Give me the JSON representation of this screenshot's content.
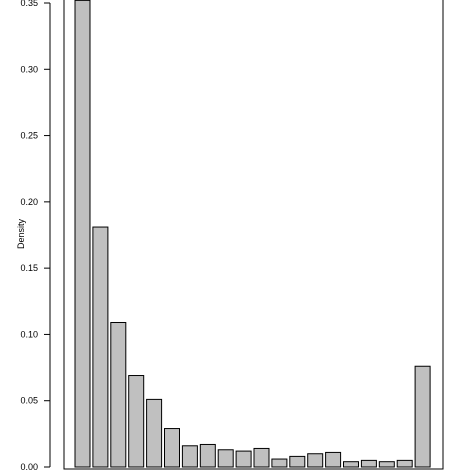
{
  "chart_data": {
    "type": "bar",
    "ylabel": "Density",
    "ylim": [
      0,
      0.35
    ],
    "y_ticks": [
      0.0,
      0.05,
      0.1,
      0.15,
      0.2,
      0.25,
      0.3,
      0.35
    ],
    "y_tick_labels": [
      "0.00",
      "0.05",
      "0.10",
      "0.15",
      "0.20",
      "0.25",
      "0.30",
      "0.35"
    ],
    "values": [
      0.352,
      0.181,
      0.109,
      0.069,
      0.051,
      0.029,
      0.016,
      0.017,
      0.013,
      0.012,
      0.014,
      0.006,
      0.008,
      0.01,
      0.011,
      0.004,
      0.005,
      0.004,
      0.005,
      0.076
    ],
    "bar_color": "#c0c0c0",
    "bar_stroke": "#000000",
    "grid": false,
    "legend": "none"
  }
}
